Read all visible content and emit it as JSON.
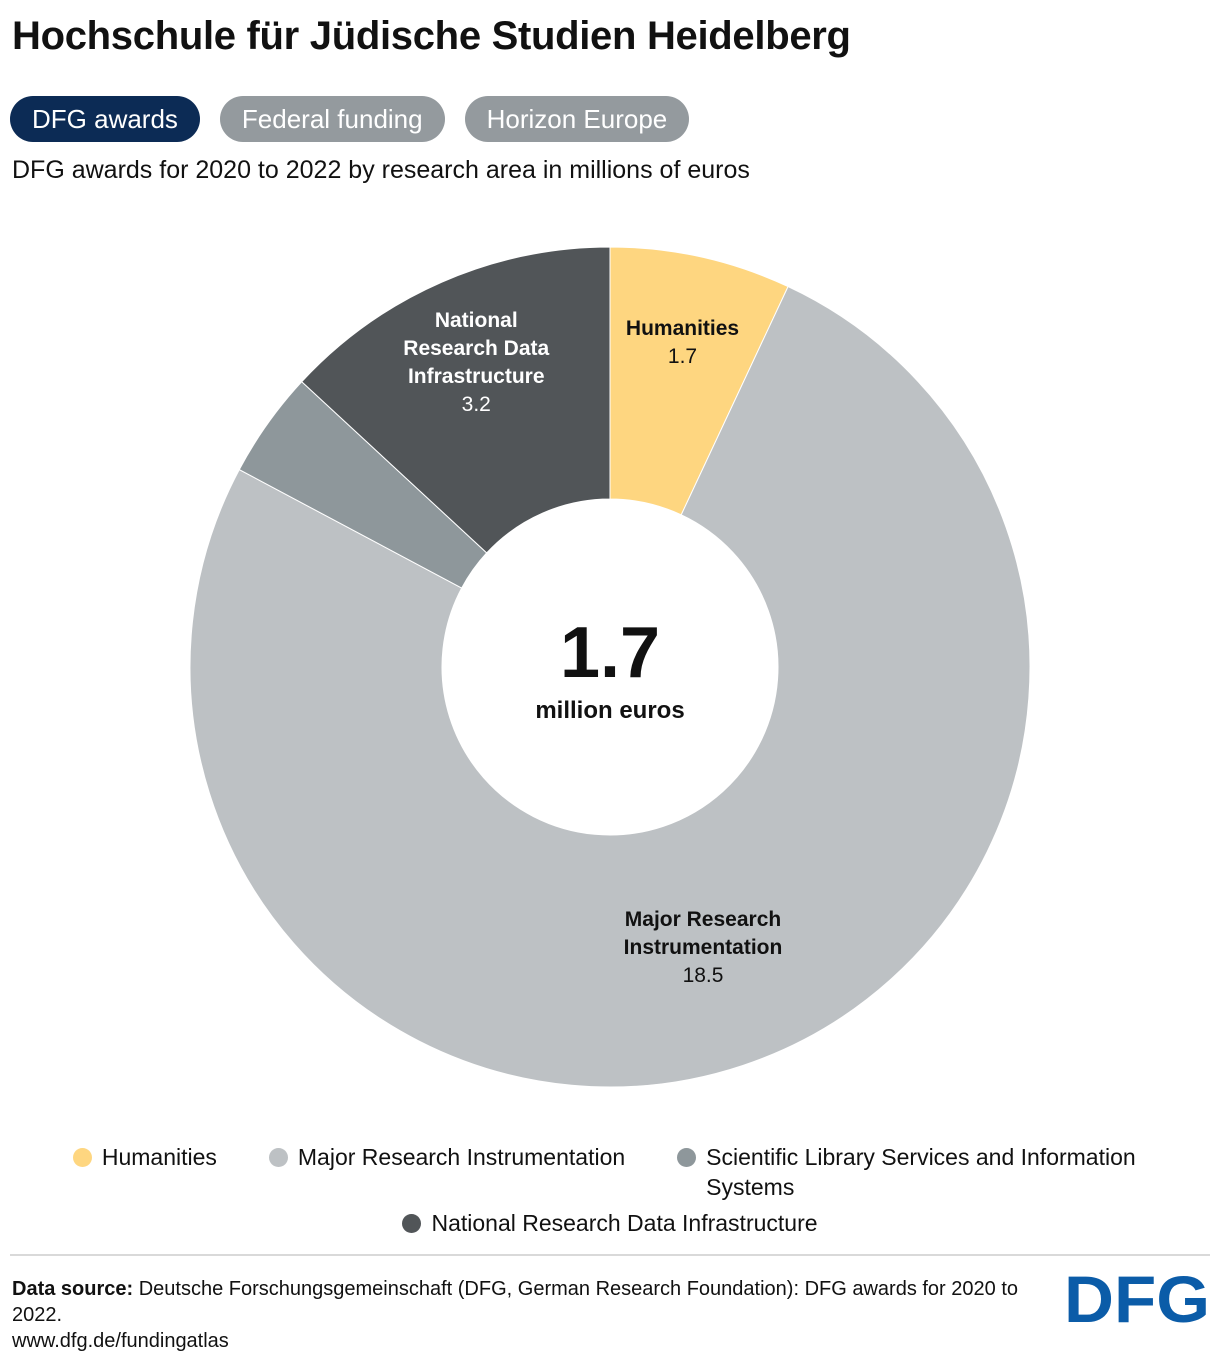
{
  "header": {
    "title": "Hochschule für Jüdische Studien Heidelberg",
    "subtitle": "DFG awards for 2020 to 2022 by research area in millions of euros"
  },
  "tabs": [
    {
      "label": "DFG awards",
      "active": true
    },
    {
      "label": "Federal funding",
      "active": false
    },
    {
      "label": "Horizon Europe",
      "active": false
    }
  ],
  "chart_data": {
    "type": "pie",
    "donut": true,
    "center": {
      "value": "1.7",
      "unit": "million euros"
    },
    "slices": [
      {
        "name": "Humanities",
        "value": 1.7,
        "value_label": "1.7",
        "color": "#fed680",
        "label_lines": [
          "Humanities"
        ],
        "label_color": "#111111"
      },
      {
        "name": "Major Research Instrumentation",
        "value": 18.5,
        "value_label": "18.5",
        "color": "#bdc1c4",
        "label_lines": [
          "Major Research",
          "Instrumentation"
        ],
        "label_color": "#111111"
      },
      {
        "name": "Scientific Library Services and Information Systems",
        "value": 1.0,
        "value_label": "",
        "color": "#8e979b",
        "label_lines": [],
        "label_color": "#111111"
      },
      {
        "name": "National Research Data Infrastructure",
        "value": 3.2,
        "value_label": "3.2",
        "color": "#515558",
        "label_lines": [
          "National",
          "Research Data",
          "Infrastructure"
        ],
        "label_color": "#ffffff"
      }
    ],
    "legend": [
      {
        "label": "Humanities",
        "color": "#fed680"
      },
      {
        "label": "Major Research Instrumentation",
        "color": "#bdc1c4"
      },
      {
        "label": "Scientific Library Services and Information Systems",
        "color": "#8e979b"
      },
      {
        "label": "National Research Data Infrastructure",
        "color": "#515558"
      }
    ],
    "legend_placement": "bottom"
  },
  "footer": {
    "source_label": "Data source:",
    "source_text": "Deutsche Forschungsgemeinschaft (DFG, German Research Foundation): DFG awards for 2020 to 2022.",
    "url": "www.dfg.de/fundingatlas",
    "logo_text": "DFG",
    "logo_color": "#0b5ca8"
  }
}
